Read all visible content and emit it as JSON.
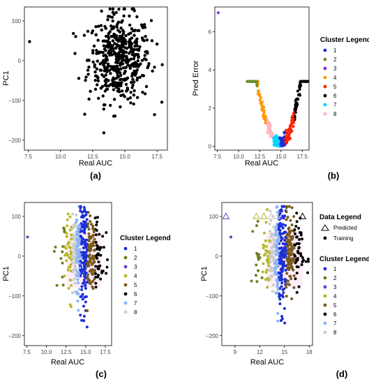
{
  "figure": {
    "colors": {
      "points_a": "#000000",
      "clusters": {
        "1": "#1d2fd6",
        "2": "#6b8c2e",
        "3": "#8a2be2",
        "4": "#ff9900",
        "5": "#ff2200",
        "6": "#000000",
        "7": "#00d5ff",
        "8": "#ffb6c1"
      },
      "clusters_cd": {
        "1": "#1d2fd6",
        "2": "#6b7f1c",
        "3": "#6f3cc9",
        "4": "#b8b826",
        "5": "#7a5a1e",
        "6": "#000000",
        "7": "#8ab4f8",
        "8": "#cccccc"
      }
    }
  },
  "chart_data": [
    {
      "panel": "(a)",
      "type": "scatter",
      "xlabel": "Real AUC",
      "ylabel": "PC1",
      "xlim": [
        7.2,
        18.3
      ],
      "ylim": [
        -225,
        135
      ],
      "xticks": [
        "7.5",
        "10.0",
        "12.5",
        "15.0",
        "17.5"
      ],
      "yticks": [
        "100",
        "0",
        "−100",
        "−200"
      ],
      "ytick_values": [
        100,
        0,
        -100,
        -200
      ],
      "xtick_values": [
        7.5,
        10.0,
        12.5,
        15.0,
        17.5
      ],
      "points_note": "cloud centered near x=14.5, y=0 with spread; outlier at (7.6, 48)",
      "outliers": [
        {
          "x": 7.6,
          "y": 48
        }
      ],
      "cloud": {
        "x_center": 14.6,
        "x_sd": 1.2,
        "y_center": 5,
        "y_sd": 55,
        "n": 480
      }
    },
    {
      "panel": "(b)",
      "type": "scatter",
      "xlabel": "Real AUC",
      "ylabel": "Pred Error",
      "xlim": [
        7.2,
        18.3
      ],
      "ylim": [
        -0.2,
        7.3
      ],
      "xticks": [
        "7.5",
        "10.0",
        "12.5",
        "15.0",
        "17.5"
      ],
      "xtick_values": [
        7.5,
        10.0,
        12.5,
        15.0,
        17.5
      ],
      "yticks": [
        "6",
        "4",
        "2",
        "0"
      ],
      "ytick_values": [
        6,
        4,
        2,
        0
      ],
      "legend_title": "Cluster Legend",
      "legend": [
        "1",
        "2",
        "3",
        "4",
        "5",
        "6",
        "7",
        "8"
      ],
      "outliers": [
        {
          "x": 7.6,
          "y": 7.0,
          "cluster": "3"
        }
      ],
      "shape": "V curve with minimum near x=14.8"
    },
    {
      "panel": "(c)",
      "type": "scatter",
      "xlabel": "Real AUC",
      "ylabel": "PC1",
      "xlim": [
        7.2,
        18.3
      ],
      "ylim": [
        -225,
        135
      ],
      "xticks": [
        "7.5",
        "10.0",
        "12.5",
        "15.0",
        "17.5"
      ],
      "xtick_values": [
        7.5,
        10.0,
        12.5,
        15.0,
        17.5
      ],
      "yticks": [
        "100",
        "0",
        "−100",
        "−200"
      ],
      "ytick_values": [
        100,
        0,
        -100,
        -200
      ],
      "legend_title": "Cluster Legend",
      "legend": [
        "1",
        "2",
        "3",
        "4",
        "5",
        "6",
        "7",
        "8"
      ],
      "outliers": [
        {
          "x": 7.6,
          "y": 48,
          "cluster": "3"
        }
      ]
    },
    {
      "panel": "(d)",
      "type": "scatter",
      "xlabel": "Real AUC",
      "ylabel": "PC1",
      "xlim": [
        7.4,
        18.4
      ],
      "ylim": [
        -225,
        135
      ],
      "xticks": [
        "9",
        "12",
        "15",
        "18"
      ],
      "xtick_values": [
        9,
        12,
        15,
        18
      ],
      "yticks": [
        "100",
        "0",
        "−100",
        "−200"
      ],
      "ytick_values": [
        100,
        0,
        -100,
        -200
      ],
      "data_legend_title": "Data Legend",
      "data_legend": [
        "Predicted",
        "Training"
      ],
      "legend_title": "Cluster Legend",
      "legend": [
        "1",
        "2",
        "3",
        "4",
        "5",
        "6",
        "7",
        "8"
      ],
      "predicted": [
        {
          "x": 7.9,
          "y": 100,
          "cluster": "3"
        },
        {
          "x": 11.6,
          "y": 100,
          "cluster": "4"
        },
        {
          "x": 12.5,
          "y": 100,
          "cluster": "4"
        },
        {
          "x": 13.4,
          "y": 100,
          "cluster": "8"
        },
        {
          "x": 14.1,
          "y": 100,
          "cluster": "8"
        },
        {
          "x": 17.2,
          "y": 100,
          "cluster": "6"
        }
      ],
      "outliers": [
        {
          "x": 8.5,
          "y": 48,
          "cluster": "3"
        }
      ]
    }
  ]
}
